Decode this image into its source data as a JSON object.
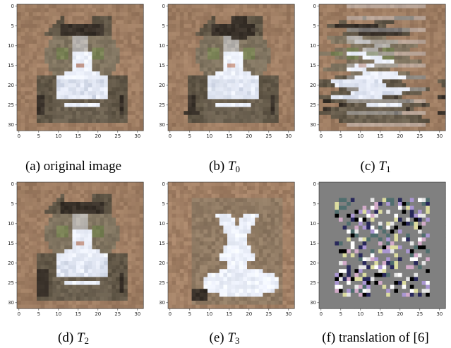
{
  "figure": {
    "axis_ticks": [
      "0",
      "5",
      "10",
      "15",
      "20",
      "25",
      "30"
    ],
    "panels": [
      {
        "id": "a",
        "label": "(a)",
        "caption": "original image",
        "variant": "original"
      },
      {
        "id": "b",
        "label": "(b)",
        "symbol": "T",
        "subscript": "0",
        "variant": "t0"
      },
      {
        "id": "c",
        "label": "(c)",
        "symbol": "T",
        "subscript": "1",
        "variant": "t1"
      },
      {
        "id": "d",
        "label": "(d)",
        "symbol": "T",
        "subscript": "2",
        "variant": "t2"
      },
      {
        "id": "e",
        "label": "(e)",
        "symbol": "T",
        "subscript": "3",
        "variant": "t3"
      },
      {
        "id": "f",
        "label": "(f)",
        "caption": "translation of [6]",
        "variant": "noise"
      }
    ]
  }
}
